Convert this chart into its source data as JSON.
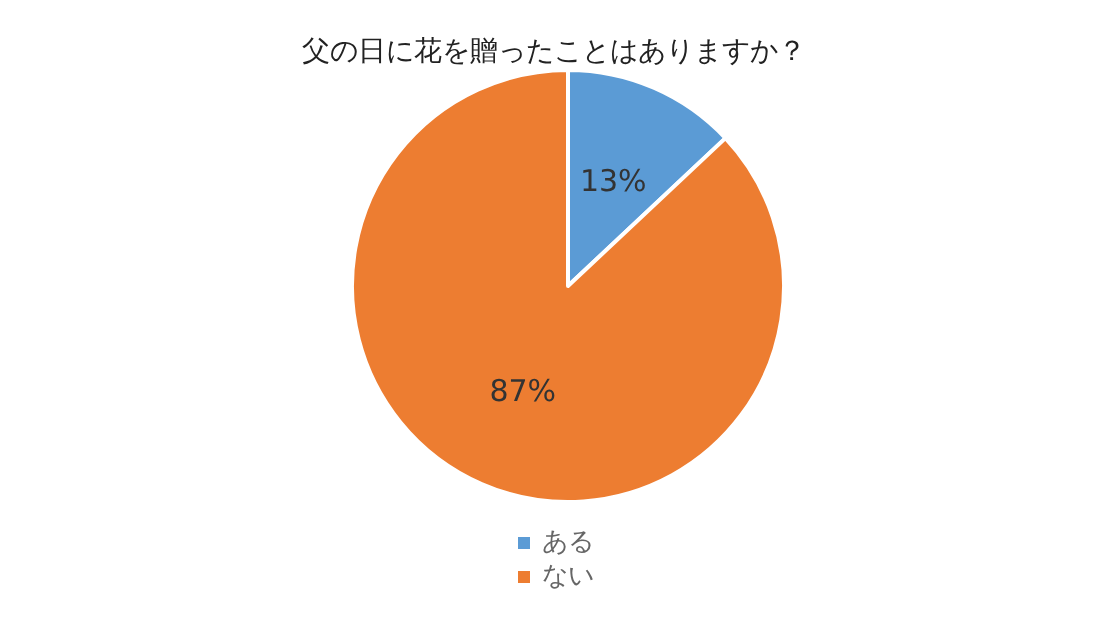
{
  "chart_data": {
    "type": "pie",
    "title": "父の日に花を贈ったことはありますか？",
    "categories": [
      "ある",
      "ない"
    ],
    "values": [
      13,
      87
    ],
    "colors": [
      "#5b9bd5",
      "#ed7d31"
    ],
    "value_labels": [
      "13%",
      "87%"
    ],
    "legend": "bottom"
  }
}
